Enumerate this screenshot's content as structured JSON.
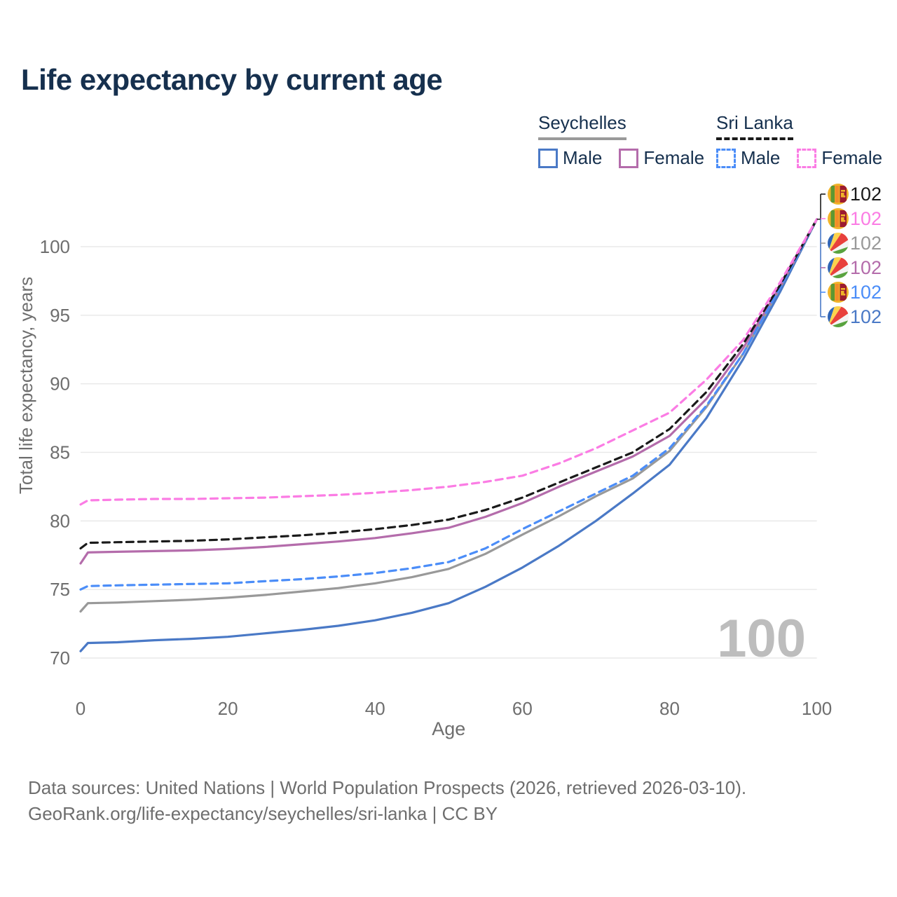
{
  "title": "Life expectancy by current age",
  "legend": {
    "groups": [
      {
        "label": "Seychelles",
        "line_style": "solid",
        "header_underline_color": "#999999",
        "items": [
          {
            "label": "Male",
            "color": "#4a79c6",
            "dashed": false
          },
          {
            "label": "Female",
            "color": "#b46cab",
            "dashed": false
          }
        ]
      },
      {
        "label": "Sri Lanka",
        "line_style": "dashed",
        "header_underline_color": "#1a1a1a",
        "items": [
          {
            "label": "Male",
            "color": "#4b8df8",
            "dashed": true
          },
          {
            "label": "Female",
            "color": "#fb7ce4",
            "dashed": true
          }
        ]
      }
    ]
  },
  "chart_data": {
    "type": "line",
    "title": "Life expectancy by current age",
    "xlabel": "Age",
    "ylabel": "Total life expectancy, years",
    "xlim": [
      0,
      100
    ],
    "ylim": [
      70,
      102
    ],
    "x_ticks": [
      0,
      20,
      40,
      60,
      80,
      100
    ],
    "y_ticks": [
      70,
      75,
      80,
      85,
      90,
      95,
      100
    ],
    "grid": "horizontal",
    "gridline_color": "#e9e9e9",
    "axis_text_color": "#6e6e6e",
    "watermark": "100",
    "watermark_color": "#bdbdbd",
    "x": [
      0,
      1,
      5,
      10,
      15,
      20,
      25,
      30,
      35,
      40,
      45,
      50,
      55,
      60,
      65,
      70,
      75,
      80,
      85,
      90,
      95,
      100
    ],
    "series": [
      {
        "id": "sc_male",
        "name": "Seychelles Male",
        "country": "seychelles",
        "sex": "male",
        "color": "#4a79c6",
        "dashed": false,
        "values": [
          70.5,
          71.1,
          71.15,
          71.3,
          71.4,
          71.55,
          71.8,
          72.05,
          72.35,
          72.75,
          73.3,
          74.0,
          75.2,
          76.6,
          78.2,
          80.0,
          82.0,
          84.1,
          87.5,
          91.8,
          96.7,
          102
        ],
        "end_label": "102"
      },
      {
        "id": "sc_total",
        "name": "Seychelles",
        "country": "seychelles",
        "sex": "both",
        "color": "#999999",
        "dashed": false,
        "values": [
          73.4,
          74.0,
          74.05,
          74.15,
          74.25,
          74.4,
          74.6,
          74.85,
          75.1,
          75.45,
          75.9,
          76.5,
          77.6,
          79.0,
          80.35,
          81.8,
          83.1,
          85.1,
          88.3,
          92.2,
          97.0,
          102
        ],
        "end_label": "102"
      },
      {
        "id": "sc_female",
        "name": "Seychelles Female",
        "country": "seychelles",
        "sex": "female",
        "color": "#b46cab",
        "dashed": false,
        "values": [
          76.9,
          77.7,
          77.75,
          77.8,
          77.85,
          77.95,
          78.1,
          78.3,
          78.5,
          78.75,
          79.1,
          79.5,
          80.3,
          81.3,
          82.5,
          83.6,
          84.7,
          86.2,
          88.9,
          92.6,
          97.1,
          102
        ],
        "end_label": "102"
      },
      {
        "id": "sl_male",
        "name": "Sri Lanka Male",
        "country": "sri-lanka",
        "sex": "male",
        "color": "#4b8df8",
        "dashed": true,
        "values": [
          75.0,
          75.25,
          75.3,
          75.35,
          75.4,
          75.45,
          75.6,
          75.75,
          75.95,
          76.2,
          76.55,
          77.0,
          78.0,
          79.4,
          80.7,
          82.0,
          83.3,
          85.3,
          88.4,
          92.2,
          97.0,
          102
        ],
        "end_label": "102"
      },
      {
        "id": "sl_total",
        "name": "Sri Lanka",
        "country": "sri-lanka",
        "sex": "both",
        "color": "#1a1a1a",
        "dashed": true,
        "values": [
          78.0,
          78.4,
          78.45,
          78.5,
          78.55,
          78.65,
          78.8,
          78.95,
          79.15,
          79.4,
          79.7,
          80.1,
          80.8,
          81.7,
          82.8,
          83.9,
          85.0,
          86.7,
          89.4,
          92.9,
          97.2,
          102
        ],
        "end_label": "102"
      },
      {
        "id": "sl_female",
        "name": "Sri Lanka Female",
        "country": "sri-lanka",
        "sex": "female",
        "color": "#fb7ce4",
        "dashed": true,
        "values": [
          81.2,
          81.5,
          81.55,
          81.6,
          81.6,
          81.65,
          81.7,
          81.8,
          81.9,
          82.05,
          82.25,
          82.5,
          82.85,
          83.3,
          84.2,
          85.3,
          86.6,
          87.9,
          90.3,
          93.2,
          97.4,
          102
        ],
        "end_label": "102"
      }
    ],
    "end_label_order": [
      "sl_total",
      "sl_female",
      "sc_total",
      "sc_female",
      "sl_male",
      "sc_male"
    ],
    "legend_position": "top-right"
  },
  "footer": {
    "line1": "Data sources: United Nations | World Population Prospects (2026, retrieved 2026-03-10).",
    "line2": "GeoRank.org/life-expectancy/seychelles/sri-lanka | CC BY"
  }
}
